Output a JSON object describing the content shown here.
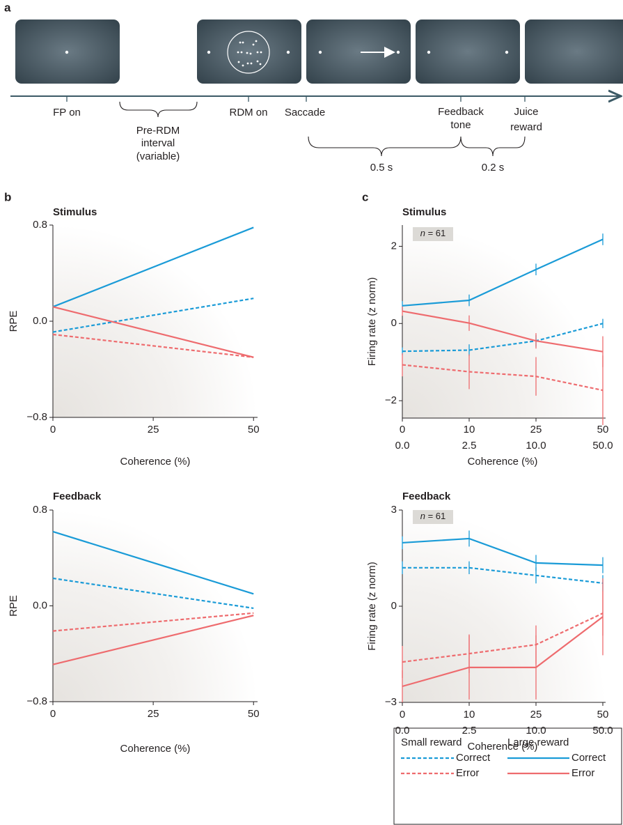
{
  "panel_labels": [
    "a",
    "b",
    "c"
  ],
  "diagram": {
    "event_labels": [
      [
        "FP on"
      ],
      [
        "RDM on"
      ],
      [
        "Saccade"
      ],
      [
        "Feedback",
        "tone"
      ],
      [
        "Juice",
        "reward"
      ]
    ],
    "interval_label": [
      "Pre-RDM",
      "interval",
      "(variable)"
    ],
    "durations": [
      "0.5 s",
      "0.2 s"
    ]
  },
  "chart_data": [
    {
      "type": "line",
      "title": "Stimulus",
      "y_label": "RPE",
      "x_label": "Coherence (%)",
      "x": [
        0,
        50
      ],
      "xlim": [
        0,
        51
      ],
      "xticks": [
        0,
        25,
        50
      ],
      "ylim": [
        -0.8,
        0.8
      ],
      "yticks": [
        {
          "value": -0.8,
          "label": "−0.8"
        },
        {
          "value": 0,
          "label": "0.0"
        },
        0.8
      ],
      "series": [
        {
          "color": "#1a9bd7",
          "dash": false,
          "values": [
            0.12,
            0.78
          ]
        },
        {
          "color": "#1a9bd7",
          "dash": true,
          "values": [
            -0.09,
            0.19
          ]
        },
        {
          "color": "#ee6b6e",
          "dash": false,
          "values": [
            0.12,
            -0.3
          ]
        },
        {
          "color": "#ee6b6e",
          "dash": true,
          "values": [
            -0.11,
            -0.3
          ]
        }
      ]
    },
    {
      "type": "line",
      "title": "Feedback",
      "y_label": "RPE",
      "x_label": "Coherence (%)",
      "x": [
        0,
        50
      ],
      "xlim": [
        0,
        51
      ],
      "xticks": [
        0,
        25,
        50
      ],
      "ylim": [
        -0.8,
        0.8
      ],
      "yticks": [
        {
          "value": -0.8,
          "label": "−0.8"
        },
        {
          "value": 0,
          "label": "0.0"
        },
        0.8
      ],
      "series": [
        {
          "color": "#1a9bd7",
          "dash": false,
          "values": [
            0.62,
            0.1
          ]
        },
        {
          "color": "#1a9bd7",
          "dash": true,
          "values": [
            0.23,
            -0.02
          ]
        },
        {
          "color": "#ee6b6e",
          "dash": false,
          "values": [
            -0.49,
            -0.08
          ]
        },
        {
          "color": "#ee6b6e",
          "dash": true,
          "values": [
            -0.21,
            -0.06
          ]
        }
      ]
    },
    {
      "type": "line",
      "title": "Stimulus",
      "annotation": "n = 61",
      "y_label": "Firing rate (z norm)",
      "x_label": "Coherence (%)",
      "categories": [
        "0",
        "10",
        "25",
        "50"
      ],
      "categories_2": [
        "0.0",
        "2.5",
        "10.0",
        "50.0"
      ],
      "ylim": [
        -2.45,
        2.55
      ],
      "yticks": [
        {
          "value": -2,
          "label": "−2"
        },
        0,
        2
      ],
      "series": [
        {
          "color": "#1a9bd7",
          "dash": false,
          "values": [
            0.46,
            0.6,
            1.4,
            2.18
          ],
          "errors": [
            0.12,
            0.15,
            0.15,
            0.15
          ]
        },
        {
          "color": "#1a9bd7",
          "dash": true,
          "values": [
            -0.72,
            -0.69,
            -0.45,
            0.0
          ],
          "errors": [
            0.1,
            0.15,
            0.15,
            0.12
          ]
        },
        {
          "color": "#ee6b6e",
          "dash": false,
          "values": [
            0.32,
            0.01,
            -0.45,
            -0.73
          ],
          "errors": [
            0.12,
            0.2,
            0.2,
            0.4
          ]
        },
        {
          "color": "#ee6b6e",
          "dash": true,
          "values": [
            -1.07,
            -1.25,
            -1.37,
            -1.73
          ],
          "errors": [
            0.3,
            0.45,
            0.5,
            0.9
          ]
        }
      ]
    },
    {
      "type": "line",
      "title": "Feedback",
      "annotation": "n = 61",
      "y_label": "Firing rate (z norm)",
      "x_label": "Coherence (%)",
      "categories": [
        "0",
        "10",
        "25",
        "50"
      ],
      "categories_2": [
        "0.0",
        "2.5",
        "10.0",
        "50.0"
      ],
      "ylim": [
        -3,
        3
      ],
      "yticks": [
        {
          "value": -3,
          "label": "−3"
        },
        0,
        3
      ],
      "series": [
        {
          "color": "#1a9bd7",
          "dash": false,
          "values": [
            1.98,
            2.11,
            1.35,
            1.28
          ],
          "errors": [
            0.2,
            0.25,
            0.25,
            0.25
          ]
        },
        {
          "color": "#1a9bd7",
          "dash": true,
          "values": [
            1.2,
            1.2,
            0.96,
            0.72
          ],
          "errors": [
            0.2,
            0.2,
            0.25,
            0.25
          ]
        },
        {
          "color": "#ee6b6e",
          "dash": false,
          "values": [
            -2.5,
            -1.91,
            -1.91,
            -0.33
          ],
          "errors": [
            0.5,
            1.0,
            1.0,
            1.2
          ]
        },
        {
          "color": "#ee6b6e",
          "dash": true,
          "values": [
            -1.74,
            -1.48,
            -1.2,
            -0.22
          ],
          "errors": [
            0.5,
            0.6,
            0.6,
            0.7
          ]
        }
      ]
    }
  ],
  "legend": {
    "groups": [
      {
        "title": "Small reward",
        "dash": true,
        "entries": [
          {
            "label": "Correct",
            "color": "#1a9bd7"
          },
          {
            "label": "Error",
            "color": "#ee6b6e"
          }
        ]
      },
      {
        "title": "Large reward",
        "dash": false,
        "entries": [
          {
            "label": "Correct",
            "color": "#1a9bd7"
          },
          {
            "label": "Error",
            "color": "#ee6b6e"
          }
        ]
      }
    ]
  }
}
